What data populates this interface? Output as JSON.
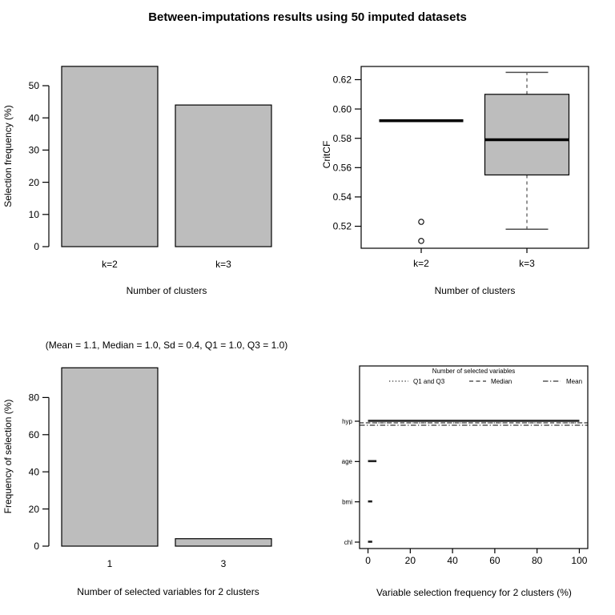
{
  "page": {
    "title": "Between-imputations results using 50 imputed datasets"
  },
  "colors": {
    "bar_fill": "#bdbdbd",
    "box_fill": "#bdbdbd",
    "stroke": "#000000",
    "whisker": "#4d4d4d",
    "segment": "#1f1f1f"
  },
  "chart_data": [
    {
      "id": "selection-frequency-barplot",
      "type": "bar",
      "position": "top-left",
      "categories": [
        "k=2",
        "k=3"
      ],
      "values": [
        56,
        44
      ],
      "xlabel": "Number of clusters",
      "ylabel": "Selection frequency (%)",
      "yticks": [
        0,
        10,
        20,
        30,
        40,
        50
      ],
      "ylim": [
        0,
        57
      ],
      "grid": false
    },
    {
      "id": "critcf-boxplot",
      "type": "boxplot",
      "position": "top-right",
      "categories": [
        "k=2",
        "k=3"
      ],
      "xlabel": "Number of clusters",
      "ylabel": "CritCF",
      "yticks": [
        0.52,
        0.54,
        0.56,
        0.58,
        0.6,
        0.62
      ],
      "ylim": [
        0.505,
        0.629
      ],
      "series": [
        {
          "name": "k=2",
          "q1": 0.592,
          "median": 0.592,
          "q3": 0.592,
          "whisker_low": 0.592,
          "whisker_high": 0.592,
          "outliers": [
            0.523,
            0.51
          ]
        },
        {
          "name": "k=3",
          "q1": 0.555,
          "median": 0.579,
          "q3": 0.61,
          "whisker_low": 0.518,
          "whisker_high": 0.625,
          "outliers": []
        }
      ],
      "grid": false
    },
    {
      "id": "num-selected-variables-barplot",
      "type": "bar",
      "position": "bottom-left",
      "title": "(Mean = 1.1, Median = 1.0, Sd = 0.4, Q1 = 1.0, Q3 = 1.0)",
      "categories": [
        "1",
        "3"
      ],
      "values": [
        96,
        4
      ],
      "xlabel": "Number of selected variables for 2 clusters",
      "ylabel": "Frequency of selection (%)",
      "yticks": [
        0,
        20,
        40,
        60,
        80
      ],
      "ylim": [
        0,
        97
      ],
      "grid": false
    },
    {
      "id": "variable-selection-frequency-plot",
      "type": "segments",
      "position": "bottom-right",
      "categories": [
        "hyp",
        "age",
        "bmi",
        "chl"
      ],
      "segments": [
        [
          0,
          100
        ],
        [
          0,
          4
        ],
        [
          0,
          2
        ],
        [
          0,
          2
        ]
      ],
      "xlabel": "Variable selection frequency for 2 clusters (%)",
      "xticks": [
        0,
        20,
        40,
        60,
        80,
        100
      ],
      "xlim": [
        -4,
        104
      ],
      "legend": {
        "title": "Number of selected variables",
        "position": "top-center",
        "entries": [
          {
            "label": "Q1 and Q3",
            "style": "dotted",
            "value": 1.0
          },
          {
            "label": "Median",
            "style": "dashed",
            "value": 1.0
          },
          {
            "label": "Mean",
            "style": "dashdot",
            "value": 1.1
          }
        ]
      },
      "grid": false
    }
  ]
}
